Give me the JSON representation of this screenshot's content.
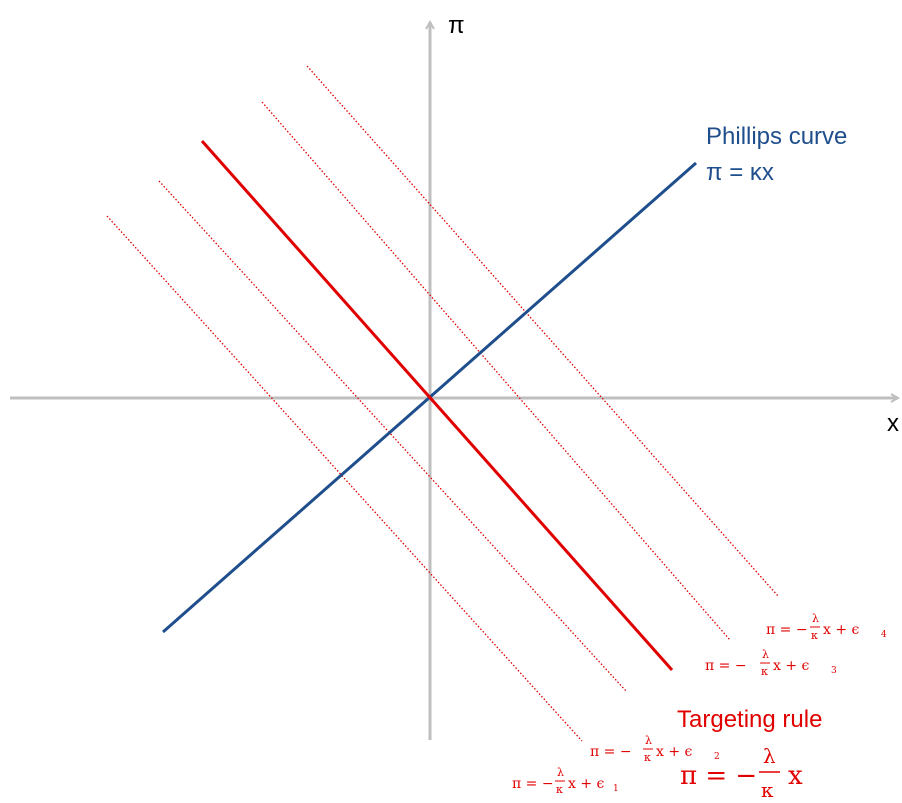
{
  "axes": {
    "x_label": "x",
    "y_label": "π"
  },
  "phillips_curve": {
    "name": "Phillips curve",
    "equation": "π = κx",
    "color": "#1F4E8C"
  },
  "targeting_rule": {
    "name": "Targeting rule",
    "eq_lhs": "π = −",
    "frac_num": "λ",
    "frac_den": "κ",
    "eq_rhs": "x",
    "color": "#E00000"
  },
  "shifted_rules": [
    {
      "eq_lhs": "π = −",
      "frac_num": "λ",
      "frac_den": "κ",
      "eq_mid": "x + ϵ",
      "subscript": "1"
    },
    {
      "eq_lhs": "π = −",
      "frac_num": "λ",
      "frac_den": "κ",
      "eq_mid": "x + ϵ",
      "subscript": "2"
    },
    {
      "eq_lhs": "π = −",
      "frac_num": "λ",
      "frac_den": "κ",
      "eq_mid": "x + ϵ",
      "subscript": "3"
    },
    {
      "eq_lhs": "π = −",
      "frac_num": "λ",
      "frac_den": "κ",
      "eq_mid": "x + ϵ",
      "subscript": "4"
    }
  ],
  "colors": {
    "axis": "#BFBFBF",
    "phillips": "#1F4E8C",
    "rule": "#E00000"
  }
}
